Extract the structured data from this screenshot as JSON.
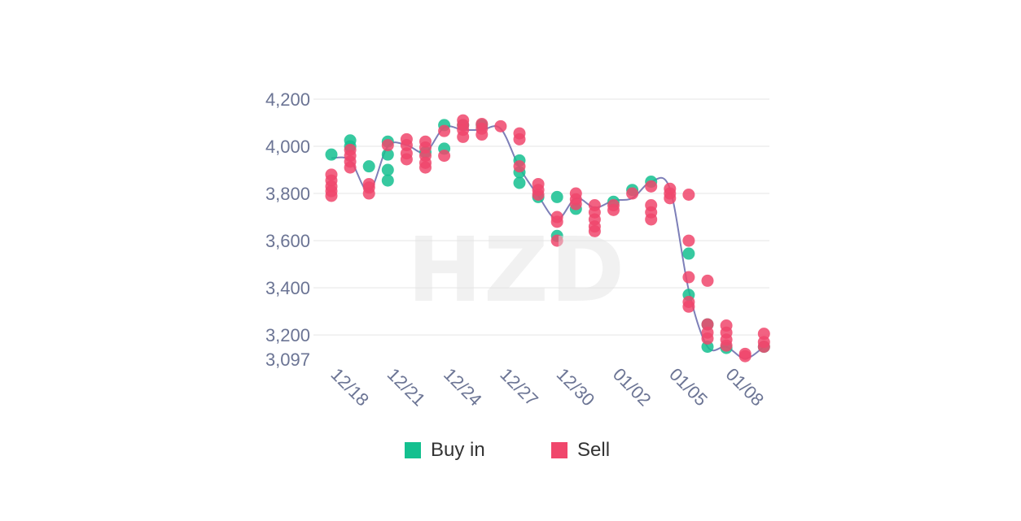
{
  "watermark": "HZD",
  "chart_data": {
    "type": "scatter",
    "title": "",
    "xlabel": "",
    "ylabel": "",
    "x_ticks": [
      "12/18",
      "12/21",
      "12/24",
      "12/27",
      "12/30",
      "01/02",
      "01/05",
      "01/08"
    ],
    "y_ticks": [
      "4,200",
      "4,000",
      "3,800",
      "3,600",
      "3,400",
      "3,200",
      "3,097"
    ],
    "ylim": [
      3097,
      4200
    ],
    "grid": true,
    "legend_position": "bottom",
    "colors": {
      "buy": "#14c08f",
      "sell": "#f0476c",
      "line": "#7d7fb8",
      "grid": "#eeeeee",
      "axis_text": "#6b7494"
    },
    "price_line": [
      3950,
      3940,
      3810,
      4000,
      4005,
      3975,
      4080,
      4070,
      4070,
      4075,
      3910,
      3790,
      3690,
      3780,
      3740,
      3770,
      3780,
      3850,
      3820,
      3390,
      3150,
      3150,
      3100,
      3150
    ],
    "series": [
      {
        "name": "Buy in",
        "points": [
          [
            0,
            3965
          ],
          [
            1,
            4025
          ],
          [
            1,
            4000
          ],
          [
            2,
            3915
          ],
          [
            3,
            4020
          ],
          [
            3,
            3965
          ],
          [
            3,
            3900
          ],
          [
            3,
            3855
          ],
          [
            5,
            3975
          ],
          [
            6,
            4090
          ],
          [
            6,
            3990
          ],
          [
            7,
            4090
          ],
          [
            8,
            4090
          ],
          [
            10,
            3940
          ],
          [
            10,
            3890
          ],
          [
            10,
            3845
          ],
          [
            11,
            3785
          ],
          [
            12,
            3785
          ],
          [
            12,
            3620
          ],
          [
            13,
            3735
          ],
          [
            15,
            3765
          ],
          [
            16,
            3815
          ],
          [
            17,
            3850
          ],
          [
            19,
            3545
          ],
          [
            19,
            3370
          ],
          [
            20,
            3150
          ],
          [
            20,
            3245
          ],
          [
            21,
            3145
          ],
          [
            23,
            3150
          ]
        ]
      },
      {
        "name": "Sell",
        "points": [
          [
            0,
            3880
          ],
          [
            0,
            3855
          ],
          [
            0,
            3830
          ],
          [
            0,
            3810
          ],
          [
            0,
            3790
          ],
          [
            1,
            3985
          ],
          [
            1,
            3960
          ],
          [
            1,
            3935
          ],
          [
            1,
            3910
          ],
          [
            2,
            3840
          ],
          [
            2,
            3825
          ],
          [
            2,
            3800
          ],
          [
            3,
            4005
          ],
          [
            4,
            4030
          ],
          [
            4,
            4005
          ],
          [
            4,
            3970
          ],
          [
            4,
            3945
          ],
          [
            5,
            4020
          ],
          [
            5,
            3995
          ],
          [
            5,
            3960
          ],
          [
            5,
            3930
          ],
          [
            5,
            3910
          ],
          [
            6,
            4065
          ],
          [
            6,
            3960
          ],
          [
            7,
            4110
          ],
          [
            7,
            4090
          ],
          [
            7,
            4070
          ],
          [
            7,
            4040
          ],
          [
            8,
            4095
          ],
          [
            8,
            4075
          ],
          [
            8,
            4050
          ],
          [
            9,
            4085
          ],
          [
            10,
            4055
          ],
          [
            10,
            4030
          ],
          [
            10,
            3915
          ],
          [
            11,
            3840
          ],
          [
            11,
            3815
          ],
          [
            11,
            3795
          ],
          [
            12,
            3700
          ],
          [
            12,
            3680
          ],
          [
            12,
            3600
          ],
          [
            13,
            3800
          ],
          [
            13,
            3775
          ],
          [
            13,
            3755
          ],
          [
            14,
            3750
          ],
          [
            14,
            3720
          ],
          [
            14,
            3690
          ],
          [
            14,
            3660
          ],
          [
            14,
            3640
          ],
          [
            15,
            3750
          ],
          [
            15,
            3730
          ],
          [
            16,
            3800
          ],
          [
            17,
            3830
          ],
          [
            17,
            3750
          ],
          [
            17,
            3720
          ],
          [
            17,
            3690
          ],
          [
            18,
            3820
          ],
          [
            18,
            3800
          ],
          [
            18,
            3780
          ],
          [
            19,
            3795
          ],
          [
            19,
            3600
          ],
          [
            19,
            3445
          ],
          [
            19,
            3340
          ],
          [
            19,
            3320
          ],
          [
            20,
            3430
          ],
          [
            20,
            3245
          ],
          [
            20,
            3210
          ],
          [
            20,
            3185
          ],
          [
            21,
            3240
          ],
          [
            21,
            3210
          ],
          [
            21,
            3180
          ],
          [
            21,
            3155
          ],
          [
            22,
            3120
          ],
          [
            22,
            3110
          ],
          [
            23,
            3205
          ],
          [
            23,
            3170
          ],
          [
            23,
            3150
          ]
        ]
      }
    ]
  },
  "legend": {
    "buy_label": "Buy in",
    "sell_label": "Sell"
  }
}
